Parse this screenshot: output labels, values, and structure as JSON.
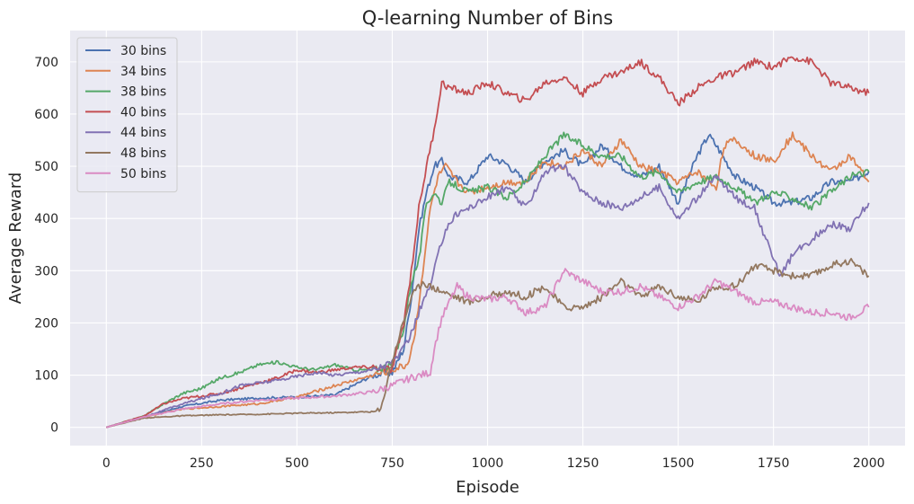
{
  "chart_data": {
    "type": "line",
    "title": "Q-learning Number of Bins",
    "xlabel": "Episode",
    "ylabel": "Average Reward",
    "xlim": [
      -95,
      2095
    ],
    "ylim": [
      -35,
      760
    ],
    "xticks": [
      0,
      250,
      500,
      750,
      1000,
      1250,
      1500,
      1750,
      2000
    ],
    "yticks": [
      0,
      100,
      200,
      300,
      400,
      500,
      600,
      700
    ],
    "grid": true,
    "legend_position": "top-left",
    "background": "#eaeaf2",
    "series": [
      {
        "name": "30 bins",
        "color": "#4c72b0",
        "points": [
          [
            0,
            0
          ],
          [
            100,
            20
          ],
          [
            200,
            40
          ],
          [
            300,
            52
          ],
          [
            400,
            56
          ],
          [
            500,
            58
          ],
          [
            600,
            62
          ],
          [
            700,
            100
          ],
          [
            750,
            105
          ],
          [
            780,
            150
          ],
          [
            800,
            250
          ],
          [
            820,
            380
          ],
          [
            840,
            450
          ],
          [
            860,
            500
          ],
          [
            880,
            510
          ],
          [
            900,
            480
          ],
          [
            950,
            470
          ],
          [
            1000,
            520
          ],
          [
            1050,
            505
          ],
          [
            1100,
            470
          ],
          [
            1150,
            510
          ],
          [
            1200,
            530
          ],
          [
            1250,
            500
          ],
          [
            1300,
            540
          ],
          [
            1350,
            500
          ],
          [
            1400,
            480
          ],
          [
            1450,
            500
          ],
          [
            1500,
            430
          ],
          [
            1550,
            520
          ],
          [
            1580,
            560
          ],
          [
            1600,
            540
          ],
          [
            1650,
            480
          ],
          [
            1700,
            460
          ],
          [
            1750,
            430
          ],
          [
            1800,
            430
          ],
          [
            1850,
            440
          ],
          [
            1900,
            470
          ],
          [
            1950,
            470
          ],
          [
            2000,
            490
          ]
        ]
      },
      {
        "name": "34 bins",
        "color": "#dd8452",
        "points": [
          [
            0,
            0
          ],
          [
            100,
            20
          ],
          [
            200,
            35
          ],
          [
            300,
            40
          ],
          [
            400,
            45
          ],
          [
            500,
            58
          ],
          [
            600,
            80
          ],
          [
            700,
            100
          ],
          [
            750,
            110
          ],
          [
            790,
            120
          ],
          [
            810,
            180
          ],
          [
            830,
            300
          ],
          [
            850,
            420
          ],
          [
            870,
            480
          ],
          [
            890,
            500
          ],
          [
            920,
            470
          ],
          [
            950,
            450
          ],
          [
            1000,
            460
          ],
          [
            1050,
            470
          ],
          [
            1100,
            470
          ],
          [
            1150,
            510
          ],
          [
            1200,
            500
          ],
          [
            1250,
            530
          ],
          [
            1300,
            500
          ],
          [
            1350,
            550
          ],
          [
            1400,
            500
          ],
          [
            1450,
            490
          ],
          [
            1500,
            470
          ],
          [
            1550,
            490
          ],
          [
            1600,
            460
          ],
          [
            1620,
            540
          ],
          [
            1650,
            550
          ],
          [
            1700,
            520
          ],
          [
            1750,
            510
          ],
          [
            1800,
            560
          ],
          [
            1850,
            520
          ],
          [
            1900,
            490
          ],
          [
            1950,
            520
          ],
          [
            2000,
            470
          ]
        ]
      },
      {
        "name": "38 bins",
        "color": "#55a868",
        "points": [
          [
            0,
            0
          ],
          [
            100,
            22
          ],
          [
            150,
            45
          ],
          [
            200,
            65
          ],
          [
            250,
            75
          ],
          [
            300,
            95
          ],
          [
            350,
            105
          ],
          [
            400,
            120
          ],
          [
            450,
            125
          ],
          [
            500,
            115
          ],
          [
            550,
            110
          ],
          [
            600,
            120
          ],
          [
            650,
            110
          ],
          [
            700,
            110
          ],
          [
            750,
            120
          ],
          [
            780,
            190
          ],
          [
            800,
            280
          ],
          [
            820,
            320
          ],
          [
            840,
            430
          ],
          [
            860,
            450
          ],
          [
            880,
            430
          ],
          [
            900,
            470
          ],
          [
            950,
            450
          ],
          [
            1000,
            460
          ],
          [
            1050,
            440
          ],
          [
            1100,
            470
          ],
          [
            1150,
            520
          ],
          [
            1200,
            560
          ],
          [
            1250,
            540
          ],
          [
            1300,
            520
          ],
          [
            1350,
            520
          ],
          [
            1400,
            480
          ],
          [
            1450,
            490
          ],
          [
            1500,
            450
          ],
          [
            1550,
            470
          ],
          [
            1600,
            480
          ],
          [
            1650,
            460
          ],
          [
            1700,
            430
          ],
          [
            1750,
            450
          ],
          [
            1800,
            440
          ],
          [
            1850,
            420
          ],
          [
            1900,
            450
          ],
          [
            1950,
            480
          ],
          [
            2000,
            490
          ]
        ]
      },
      {
        "name": "40 bins",
        "color": "#c44e52",
        "points": [
          [
            0,
            0
          ],
          [
            100,
            22
          ],
          [
            150,
            45
          ],
          [
            200,
            55
          ],
          [
            250,
            60
          ],
          [
            300,
            65
          ],
          [
            350,
            75
          ],
          [
            400,
            85
          ],
          [
            450,
            95
          ],
          [
            500,
            110
          ],
          [
            550,
            105
          ],
          [
            600,
            110
          ],
          [
            650,
            115
          ],
          [
            700,
            115
          ],
          [
            750,
            110
          ],
          [
            780,
            200
          ],
          [
            800,
            300
          ],
          [
            820,
            420
          ],
          [
            840,
            500
          ],
          [
            860,
            570
          ],
          [
            880,
            660
          ],
          [
            900,
            650
          ],
          [
            950,
            640
          ],
          [
            1000,
            660
          ],
          [
            1050,
            640
          ],
          [
            1100,
            625
          ],
          [
            1150,
            660
          ],
          [
            1200,
            670
          ],
          [
            1250,
            640
          ],
          [
            1300,
            670
          ],
          [
            1350,
            680
          ],
          [
            1400,
            700
          ],
          [
            1450,
            670
          ],
          [
            1500,
            620
          ],
          [
            1550,
            650
          ],
          [
            1600,
            670
          ],
          [
            1650,
            680
          ],
          [
            1700,
            700
          ],
          [
            1750,
            690
          ],
          [
            1800,
            710
          ],
          [
            1850,
            700
          ],
          [
            1900,
            660
          ],
          [
            1950,
            650
          ],
          [
            2000,
            640
          ]
        ]
      },
      {
        "name": "44 bins",
        "color": "#8172b3",
        "points": [
          [
            0,
            0
          ],
          [
            100,
            20
          ],
          [
            200,
            45
          ],
          [
            250,
            55
          ],
          [
            300,
            65
          ],
          [
            350,
            80
          ],
          [
            400,
            85
          ],
          [
            450,
            90
          ],
          [
            500,
            98
          ],
          [
            550,
            105
          ],
          [
            600,
            100
          ],
          [
            650,
            105
          ],
          [
            700,
            110
          ],
          [
            750,
            125
          ],
          [
            780,
            150
          ],
          [
            800,
            180
          ],
          [
            830,
            240
          ],
          [
            850,
            270
          ],
          [
            870,
            330
          ],
          [
            890,
            380
          ],
          [
            920,
            410
          ],
          [
            950,
            420
          ],
          [
            1000,
            440
          ],
          [
            1050,
            460
          ],
          [
            1100,
            420
          ],
          [
            1150,
            490
          ],
          [
            1200,
            500
          ],
          [
            1250,
            450
          ],
          [
            1300,
            430
          ],
          [
            1350,
            420
          ],
          [
            1400,
            440
          ],
          [
            1450,
            460
          ],
          [
            1500,
            400
          ],
          [
            1550,
            440
          ],
          [
            1600,
            480
          ],
          [
            1650,
            440
          ],
          [
            1700,
            420
          ],
          [
            1730,
            360
          ],
          [
            1750,
            320
          ],
          [
            1770,
            290
          ],
          [
            1800,
            330
          ],
          [
            1850,
            360
          ],
          [
            1900,
            390
          ],
          [
            1950,
            380
          ],
          [
            2000,
            430
          ]
        ]
      },
      {
        "name": "48 bins",
        "color": "#937860",
        "points": [
          [
            0,
            0
          ],
          [
            100,
            18
          ],
          [
            200,
            22
          ],
          [
            300,
            24
          ],
          [
            400,
            25
          ],
          [
            500,
            27
          ],
          [
            600,
            28
          ],
          [
            700,
            30
          ],
          [
            720,
            32
          ],
          [
            740,
            100
          ],
          [
            770,
            180
          ],
          [
            800,
            250
          ],
          [
            830,
            280
          ],
          [
            850,
            270
          ],
          [
            900,
            255
          ],
          [
            950,
            240
          ],
          [
            1000,
            250
          ],
          [
            1050,
            260
          ],
          [
            1100,
            250
          ],
          [
            1150,
            270
          ],
          [
            1200,
            230
          ],
          [
            1250,
            230
          ],
          [
            1300,
            250
          ],
          [
            1350,
            280
          ],
          [
            1400,
            250
          ],
          [
            1450,
            270
          ],
          [
            1500,
            250
          ],
          [
            1550,
            240
          ],
          [
            1600,
            270
          ],
          [
            1650,
            270
          ],
          [
            1700,
            310
          ],
          [
            1750,
            300
          ],
          [
            1800,
            290
          ],
          [
            1850,
            290
          ],
          [
            1900,
            310
          ],
          [
            1950,
            320
          ],
          [
            2000,
            290
          ]
        ]
      },
      {
        "name": "50 bins",
        "color": "#da8bc3",
        "points": [
          [
            0,
            0
          ],
          [
            100,
            20
          ],
          [
            200,
            35
          ],
          [
            300,
            45
          ],
          [
            400,
            52
          ],
          [
            500,
            56
          ],
          [
            600,
            60
          ],
          [
            700,
            68
          ],
          [
            750,
            80
          ],
          [
            800,
            95
          ],
          [
            850,
            105
          ],
          [
            860,
            150
          ],
          [
            880,
            210
          ],
          [
            900,
            240
          ],
          [
            920,
            270
          ],
          [
            950,
            250
          ],
          [
            1000,
            245
          ],
          [
            1050,
            250
          ],
          [
            1100,
            220
          ],
          [
            1150,
            230
          ],
          [
            1200,
            300
          ],
          [
            1250,
            280
          ],
          [
            1300,
            260
          ],
          [
            1350,
            260
          ],
          [
            1400,
            270
          ],
          [
            1450,
            250
          ],
          [
            1500,
            230
          ],
          [
            1550,
            250
          ],
          [
            1600,
            280
          ],
          [
            1650,
            260
          ],
          [
            1700,
            240
          ],
          [
            1750,
            240
          ],
          [
            1800,
            230
          ],
          [
            1850,
            220
          ],
          [
            1900,
            220
          ],
          [
            1950,
            210
          ],
          [
            2000,
            230
          ]
        ]
      }
    ]
  }
}
